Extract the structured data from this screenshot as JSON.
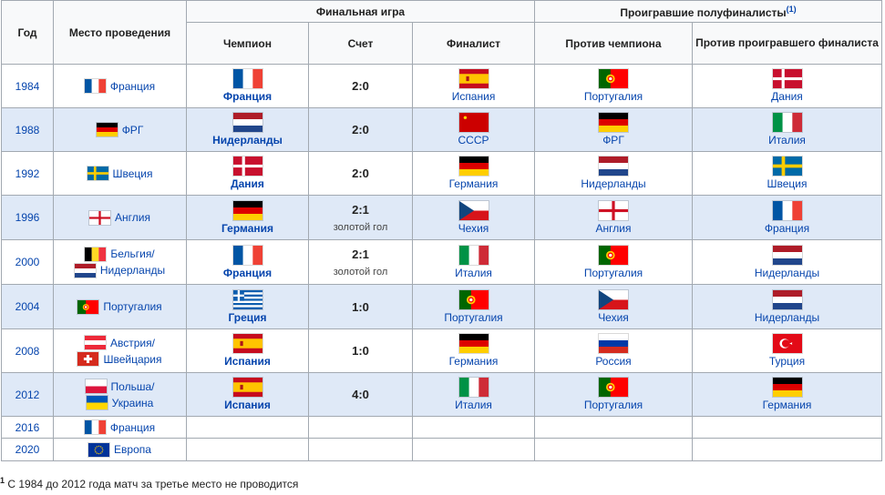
{
  "headers": {
    "year": "Год",
    "venue": "Место проведения",
    "final": "Финальная игра",
    "semis": "Проигравшие полуфиналисты",
    "semis_note": "(1)",
    "champion": "Чемпион",
    "score": "Счет",
    "finalist": "Финалист",
    "vs_champion": "Против чемпиона",
    "vs_finalist": "Против проигравшего финалиста"
  },
  "rows": [
    {
      "year": "1984",
      "venues": [
        {
          "name": "Франция",
          "flag": "fr"
        }
      ],
      "champion": {
        "name": "Франция",
        "flag": "fr"
      },
      "score": "2:0",
      "note": "",
      "finalist": {
        "name": "Испания",
        "flag": "es"
      },
      "semi1": {
        "name": "Португалия",
        "flag": "pt"
      },
      "semi2": {
        "name": "Дания",
        "flag": "dk"
      },
      "hl": false
    },
    {
      "year": "1988",
      "venues": [
        {
          "name": "ФРГ",
          "flag": "de"
        }
      ],
      "champion": {
        "name": "Нидерланды",
        "flag": "nl"
      },
      "score": "2:0",
      "note": "",
      "finalist": {
        "name": "СССР",
        "flag": "su"
      },
      "semi1": {
        "name": "ФРГ",
        "flag": "de"
      },
      "semi2": {
        "name": "Италия",
        "flag": "it"
      },
      "hl": true
    },
    {
      "year": "1992",
      "venues": [
        {
          "name": "Швеция",
          "flag": "se"
        }
      ],
      "champion": {
        "name": "Дания",
        "flag": "dk"
      },
      "score": "2:0",
      "note": "",
      "finalist": {
        "name": "Германия",
        "flag": "de"
      },
      "semi1": {
        "name": "Нидерланды",
        "flag": "nl"
      },
      "semi2": {
        "name": "Швеция",
        "flag": "se"
      },
      "hl": false
    },
    {
      "year": "1996",
      "venues": [
        {
          "name": "Англия",
          "flag": "en"
        }
      ],
      "champion": {
        "name": "Германия",
        "flag": "de"
      },
      "score": "2:1",
      "note": "золотой гол",
      "finalist": {
        "name": "Чехия",
        "flag": "cz"
      },
      "semi1": {
        "name": "Англия",
        "flag": "en"
      },
      "semi2": {
        "name": "Франция",
        "flag": "fr"
      },
      "hl": true
    },
    {
      "year": "2000",
      "venues": [
        {
          "name": "Бельгия/",
          "flag": "be"
        },
        {
          "name": "Нидерланды",
          "flag": "nl"
        }
      ],
      "champion": {
        "name": "Франция",
        "flag": "fr"
      },
      "score": "2:1",
      "note": "золотой гол",
      "finalist": {
        "name": "Италия",
        "flag": "it"
      },
      "semi1": {
        "name": "Португалия",
        "flag": "pt"
      },
      "semi2": {
        "name": "Нидерланды",
        "flag": "nl"
      },
      "hl": false
    },
    {
      "year": "2004",
      "venues": [
        {
          "name": "Португалия",
          "flag": "pt"
        }
      ],
      "champion": {
        "name": "Греция",
        "flag": "gr"
      },
      "score": "1:0",
      "note": "",
      "finalist": {
        "name": "Португалия",
        "flag": "pt"
      },
      "semi1": {
        "name": "Чехия",
        "flag": "cz"
      },
      "semi2": {
        "name": "Нидерланды",
        "flag": "nl"
      },
      "hl": true
    },
    {
      "year": "2008",
      "venues": [
        {
          "name": "Австрия/",
          "flag": "at"
        },
        {
          "name": "Швейцария",
          "flag": "ch"
        }
      ],
      "champion": {
        "name": "Испания",
        "flag": "es"
      },
      "score": "1:0",
      "note": "",
      "finalist": {
        "name": "Германия",
        "flag": "de"
      },
      "semi1": {
        "name": "Россия",
        "flag": "ru"
      },
      "semi2": {
        "name": "Турция",
        "flag": "tr"
      },
      "hl": false
    },
    {
      "year": "2012",
      "venues": [
        {
          "name": "Польша/",
          "flag": "pl"
        },
        {
          "name": "Украина",
          "flag": "ua"
        }
      ],
      "champion": {
        "name": "Испания",
        "flag": "es"
      },
      "score": "4:0",
      "note": "",
      "finalist": {
        "name": "Италия",
        "flag": "it"
      },
      "semi1": {
        "name": "Португалия",
        "flag": "pt"
      },
      "semi2": {
        "name": "Германия",
        "flag": "de"
      },
      "hl": true
    },
    {
      "year": "2016",
      "venues": [
        {
          "name": "Франция",
          "flag": "fr"
        }
      ],
      "champion": null,
      "score": "",
      "note": "",
      "finalist": null,
      "semi1": null,
      "semi2": null,
      "hl": false
    },
    {
      "year": "2020",
      "venues": [
        {
          "name": "Европа",
          "flag": "eu"
        }
      ],
      "champion": null,
      "score": "",
      "note": "",
      "finalist": null,
      "semi1": null,
      "semi2": null,
      "hl": false
    }
  ],
  "footnote": {
    "mark": "1",
    "text": "С 1984 до 2012 года матч за третье место не проводится"
  }
}
